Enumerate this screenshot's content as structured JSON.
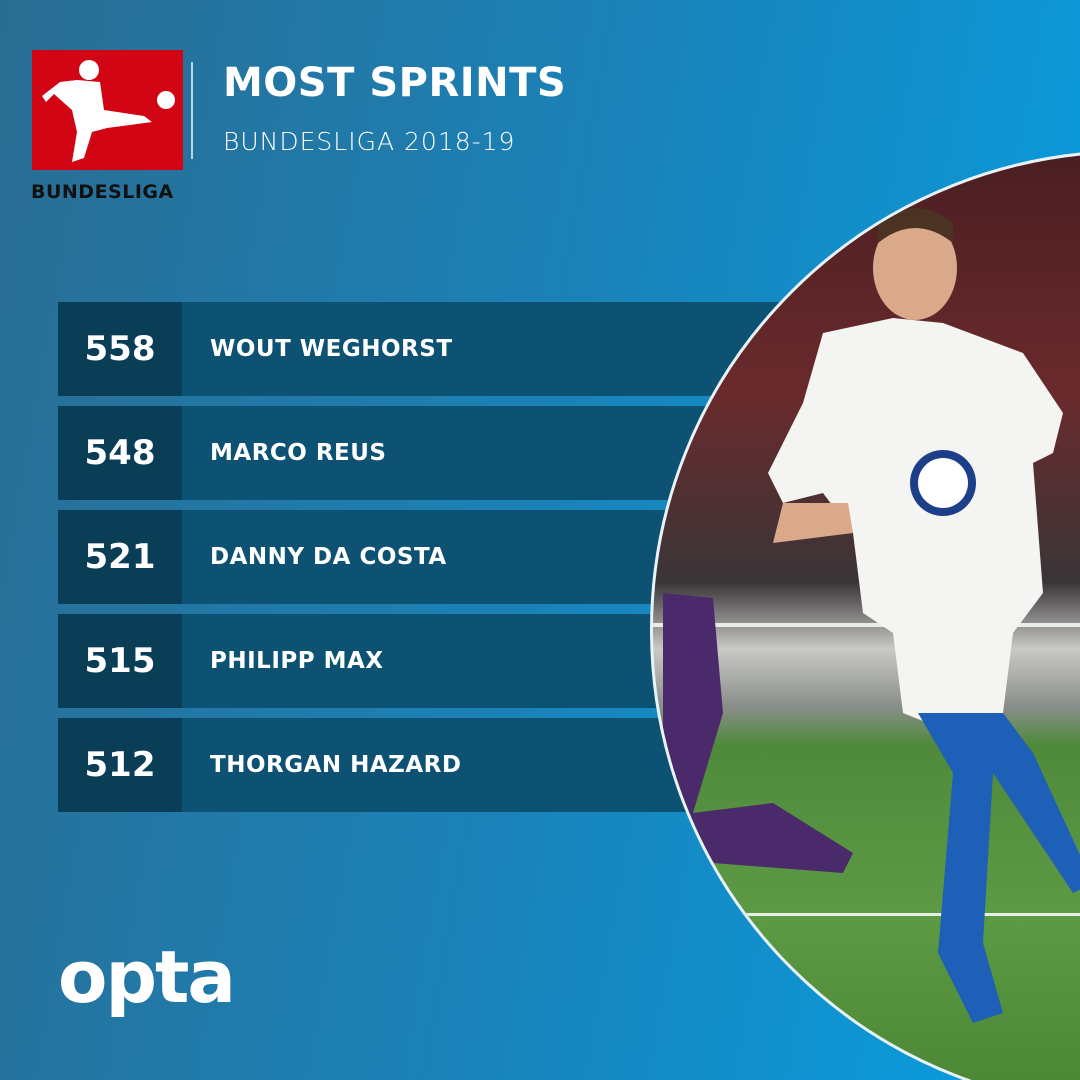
{
  "header": {
    "logo_text": "BUNDESLIGA",
    "title": "MOST SPRINTS",
    "subtitle": "BUNDESLIGA 2018-19"
  },
  "ranking": [
    {
      "value": "558",
      "name": "WOUT WEGHORST"
    },
    {
      "value": "548",
      "name": "MARCO REUS"
    },
    {
      "value": "521",
      "name": "DANNY DA COSTA"
    },
    {
      "value": "515",
      "name": "PHILIPP MAX"
    },
    {
      "value": "512",
      "name": "THORGAN HAZARD"
    }
  ],
  "footer": {
    "brand": "opta"
  },
  "colors": {
    "logo_red": "#d20515",
    "row_dark": "#0a3d56",
    "row": "#0d5272",
    "bg_left": "#2a6d93",
    "bg_right": "#079fe2"
  }
}
